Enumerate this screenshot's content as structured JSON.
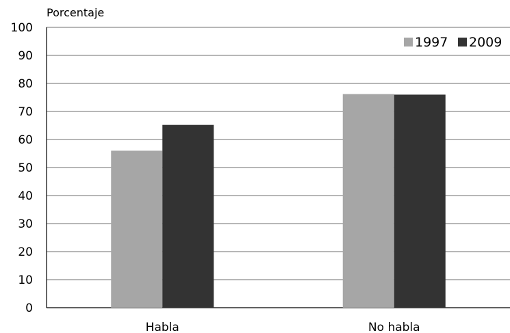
{
  "chart_data": {
    "type": "bar",
    "ylabel": "Porcentaje",
    "xlabel": "",
    "categories": [
      "Habla",
      "No habla"
    ],
    "series": [
      {
        "name": "1997",
        "values": [
          56,
          76.2
        ]
      },
      {
        "name": "2009",
        "values": [
          65.2,
          76
        ]
      }
    ],
    "ylim": [
      0,
      100
    ],
    "yticks": [
      0,
      10,
      20,
      30,
      40,
      50,
      60,
      70,
      80,
      90,
      100
    ],
    "grid": true,
    "legend": "top-right"
  },
  "colors": {
    "1997": "#a6a6a6",
    "2009": "#333333",
    "grid": "#8c8c8c",
    "axis": "#000000"
  }
}
